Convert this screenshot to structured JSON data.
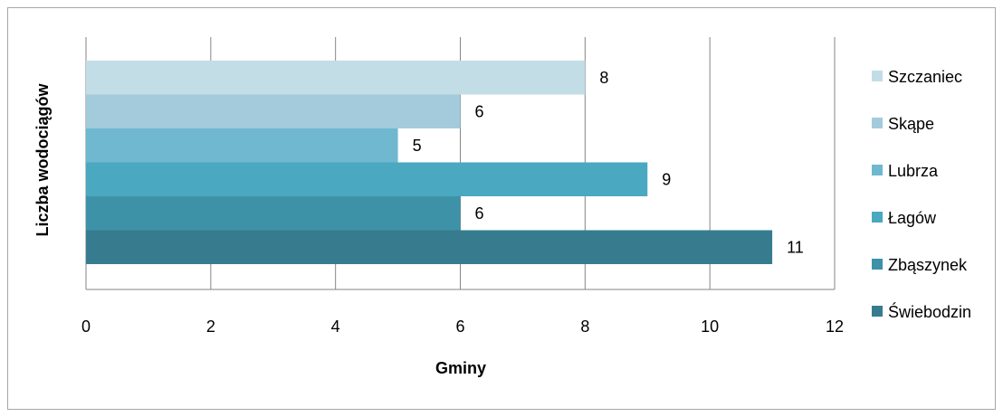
{
  "chart_data": {
    "type": "bar",
    "orientation": "horizontal",
    "xlabel": "Gminy",
    "ylabel": "Liczba wodociągów",
    "xlim": [
      0,
      12
    ],
    "x_ticks": [
      0,
      2,
      4,
      6,
      8,
      10,
      12
    ],
    "grid": "vertical",
    "legend_position": "right",
    "series": [
      {
        "name": "Szczaniec",
        "value": 8,
        "color": "#c3dde6"
      },
      {
        "name": "Skąpe",
        "value": 6,
        "color": "#a3cbdb"
      },
      {
        "name": "Lubrza",
        "value": 5,
        "color": "#6fb8cf"
      },
      {
        "name": "Łagów",
        "value": 9,
        "color": "#4aa8c0"
      },
      {
        "name": "Zbąszynek",
        "value": 6,
        "color": "#3e92a8"
      },
      {
        "name": "Świebodzin",
        "value": 11,
        "color": "#367c8e"
      }
    ],
    "tick_labels": [
      "0",
      "2",
      "4",
      "6",
      "8",
      "10",
      "12"
    ]
  }
}
